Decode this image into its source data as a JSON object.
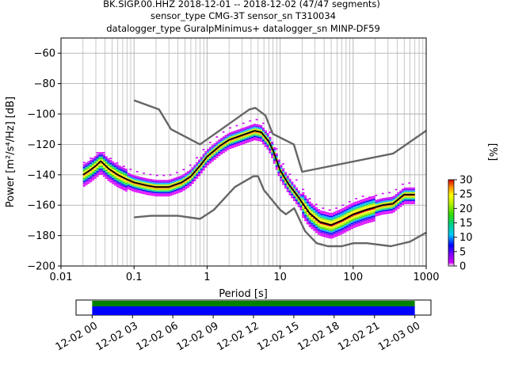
{
  "chart_data": {
    "type": "heatmap",
    "title_lines": [
      "BK.SIGP.00.HHZ   2018-12-01 -- 2018-12-02  (47/47 segments)",
      "sensor_type CMG-3T sensor_sn T310034",
      "datalogger_type GuralpMinimus+ datalogger_sn MINP-DF59"
    ],
    "xlabel": "Period [s]",
    "ylabel": "Power [m²/s⁴/Hz] [dB]",
    "xscale": "log",
    "xlim": [
      0.01,
      1000
    ],
    "ylim": [
      -200,
      -50
    ],
    "xticks": [
      {
        "v": 0.01,
        "label": "0.01"
      },
      {
        "v": 0.1,
        "label": "0.1"
      },
      {
        "v": 1,
        "label": "1"
      },
      {
        "v": 10,
        "label": "10"
      },
      {
        "v": 100,
        "label": "100"
      },
      {
        "v": 1000,
        "label": "1000"
      }
    ],
    "yticks": [
      -60,
      -80,
      -100,
      -120,
      -140,
      -160,
      -180,
      -200
    ],
    "grid": true,
    "colorbar": {
      "label": "[%]",
      "min": 0,
      "max": 30,
      "ticks": [
        0,
        5,
        10,
        15,
        20,
        25,
        30
      ]
    },
    "noise_models": [
      {
        "name": "",
        "color": "#666666",
        "points": [
          [
            0.1,
            -91
          ],
          [
            0.22,
            -97
          ],
          [
            0.32,
            -110
          ],
          [
            0.8,
            -120
          ],
          [
            3.8,
            -97
          ],
          [
            4.6,
            -96
          ],
          [
            6.3,
            -101
          ],
          [
            7.9,
            -113
          ],
          [
            15.4,
            -120
          ],
          [
            20,
            -138
          ],
          [
            354,
            -126
          ],
          [
            1000,
            -111
          ]
        ]
      },
      {
        "name": "",
        "color": "#666666",
        "points": [
          [
            0.1,
            -168
          ],
          [
            0.17,
            -167
          ],
          [
            0.4,
            -167
          ],
          [
            0.8,
            -169
          ],
          [
            1.24,
            -163
          ],
          [
            2.4,
            -148
          ],
          [
            4.3,
            -141
          ],
          [
            5,
            -141
          ],
          [
            6,
            -150
          ],
          [
            10,
            -163
          ],
          [
            12,
            -166
          ],
          [
            15.6,
            -162
          ],
          [
            21.9,
            -177
          ],
          [
            31.6,
            -185
          ],
          [
            45,
            -187
          ],
          [
            70,
            -187
          ],
          [
            101,
            -185
          ],
          [
            154,
            -185
          ],
          [
            328,
            -187
          ],
          [
            600,
            -184
          ],
          [
            1000,
            -178
          ]
        ]
      }
    ],
    "mode_curve": {
      "color": "#000000",
      "points": [
        [
          0.02,
          -140
        ],
        [
          0.025,
          -137
        ],
        [
          0.03,
          -134
        ],
        [
          0.035,
          -131
        ],
        [
          0.045,
          -136
        ],
        [
          0.06,
          -140
        ],
        [
          0.08,
          -143
        ],
        [
          0.1,
          -145
        ],
        [
          0.15,
          -147
        ],
        [
          0.2,
          -148
        ],
        [
          0.3,
          -148
        ],
        [
          0.45,
          -145
        ],
        [
          0.6,
          -141
        ],
        [
          0.8,
          -134
        ],
        [
          1,
          -128
        ],
        [
          1.5,
          -121
        ],
        [
          2,
          -117
        ],
        [
          3,
          -114
        ],
        [
          4.5,
          -111
        ],
        [
          5.5,
          -112
        ],
        [
          7,
          -118
        ],
        [
          8,
          -124
        ],
        [
          10,
          -137
        ],
        [
          13,
          -146
        ],
        [
          18,
          -155
        ],
        [
          25,
          -165
        ],
        [
          35,
          -171
        ],
        [
          50,
          -173
        ],
        [
          70,
          -170
        ],
        [
          100,
          -166
        ],
        [
          150,
          -163
        ],
        [
          250,
          -160
        ],
        [
          350,
          -159
        ],
        [
          500,
          -153
        ],
        [
          700,
          -153
        ]
      ]
    },
    "time_axis": {
      "labels": [
        "12-02 00",
        "12-02 03",
        "12-02 06",
        "12-02 09",
        "12-02 12",
        "12-02 15",
        "12-02 18",
        "12-02 21",
        "12-03 00"
      ],
      "hours": [
        0,
        3,
        6,
        9,
        12,
        15,
        18,
        21,
        24
      ],
      "range_hours": [
        -1.2,
        25.2
      ],
      "coverage_hours": [
        0,
        24
      ],
      "data_color": "#0000ff",
      "gap_color": "#008000"
    }
  }
}
